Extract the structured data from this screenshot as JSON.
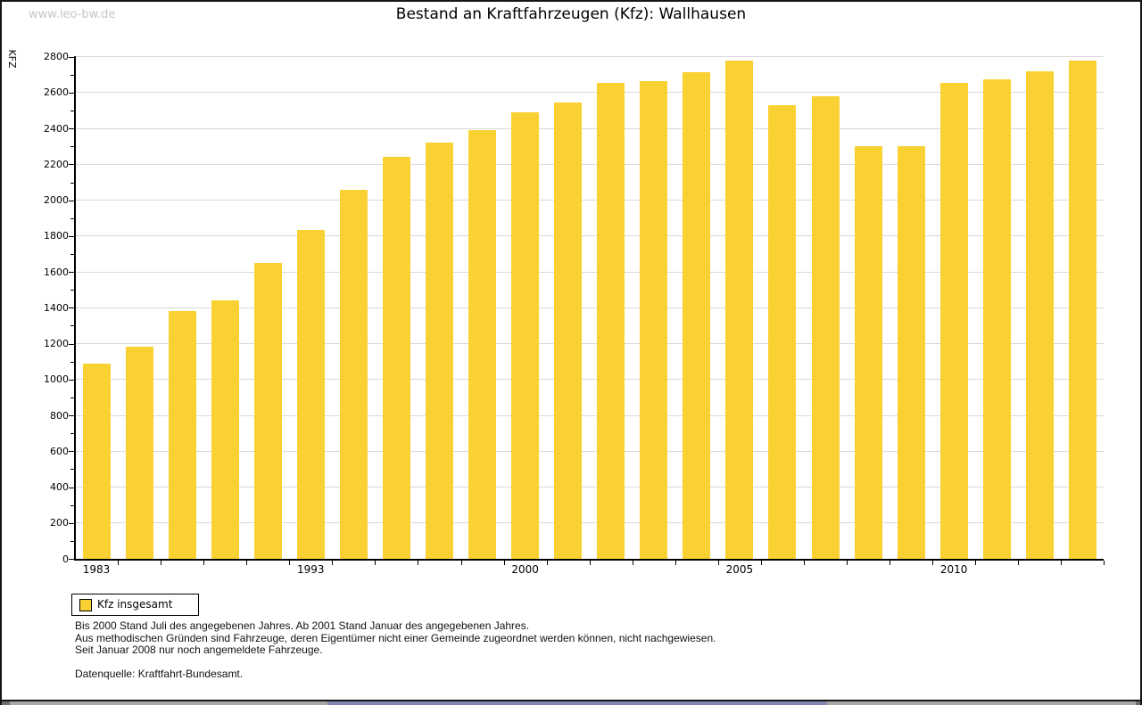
{
  "watermark": "www.leo-bw.de",
  "title": "Bestand an Kraftfahrzeugen (Kfz): Wallhausen",
  "legend": {
    "label": "Kfz insgesamt",
    "swatch_color": "#fad133"
  },
  "footnotes": [
    "Bis 2000 Stand Juli des angegebenen Jahres. Ab 2001 Stand Januar des angegebenen Jahres.",
    "Aus methodischen Gründen sind Fahrzeuge, deren Eigentümer nicht einer Gemeinde zugeordnet werden können, nicht nachgewiesen.",
    "Seit Januar 2008 nur noch angemeldete Fahrzeuge."
  ],
  "source": "Datenquelle: Kraftfahrt-Bundesamt.",
  "chart_data": {
    "type": "bar",
    "title": "Bestand an Kraftfahrzeugen (Kfz): Wallhausen",
    "xlabel": "",
    "ylabel": "KFZ",
    "ylim": [
      0,
      2800
    ],
    "y_major_step": 200,
    "y_minor_step": 100,
    "grid": "horizontal major gridlines, light gray",
    "legend_position": "bottom-left",
    "bar_color": "#fad133",
    "y_tick_labels": [
      "0",
      "200",
      "400",
      "600",
      "800",
      "1000",
      "1200",
      "1400",
      "1600",
      "1800",
      "2000",
      "2200",
      "2400",
      "2600",
      "2800"
    ],
    "x_tick_labels": [
      {
        "text": "1983",
        "slot": 0
      },
      {
        "text": "1993",
        "slot": 5
      },
      {
        "text": "2000",
        "slot": 10
      },
      {
        "text": "2005",
        "slot": 15
      },
      {
        "text": "2010",
        "slot": 20
      }
    ],
    "series": [
      {
        "name": "Kfz insgesamt",
        "values": [
          1090,
          1185,
          1380,
          1440,
          1650,
          1835,
          2060,
          2240,
          2320,
          2390,
          2490,
          2545,
          2655,
          2665,
          2715,
          2780,
          2530,
          2580,
          2300,
          2300,
          2655,
          2675,
          2720,
          2780
        ]
      }
    ]
  }
}
